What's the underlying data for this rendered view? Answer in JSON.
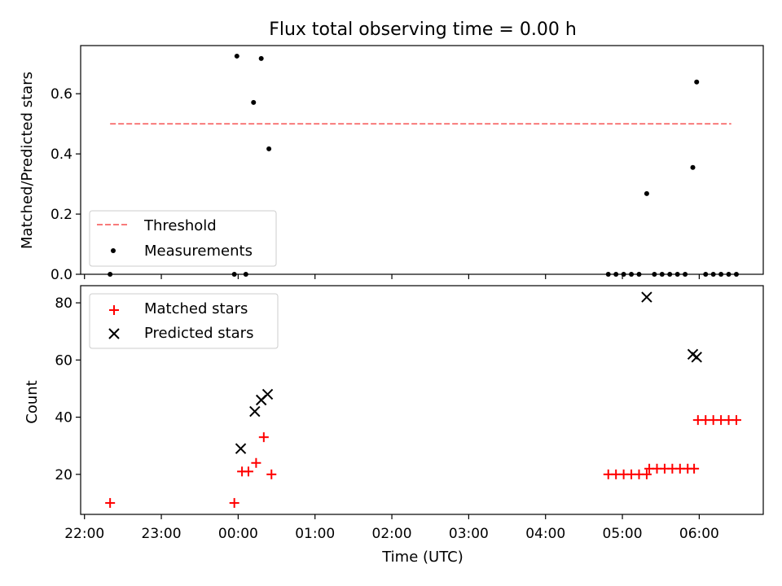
{
  "figure": {
    "title": "Flux total observing time = 0.00 h"
  },
  "chart_data": [
    {
      "type": "scatter",
      "panel": "top",
      "ylabel": "Matched/Predicted stars",
      "xlabel": "",
      "ylim": [
        0,
        0.76
      ],
      "yticks": [
        "0.0",
        "0.2",
        "0.4",
        "0.6"
      ],
      "xlim": [
        "21:57",
        "06:50"
      ],
      "grid": false,
      "legend_position": "lower-left",
      "threshold": {
        "name": "Threshold",
        "value": 0.5,
        "x_range": [
          "22:20",
          "06:25"
        ],
        "color": "#f87a7a",
        "style": "dashed"
      },
      "series": [
        {
          "name": "Measurements",
          "color": "#000000",
          "marker": "dot",
          "points": [
            {
              "x": "22:20",
              "y": 0.0
            },
            {
              "x": "23:57",
              "y": 0.0
            },
            {
              "x": "23:59",
              "y": 0.725
            },
            {
              "x": "00:06",
              "y": 0.0
            },
            {
              "x": "00:12",
              "y": 0.571
            },
            {
              "x": "00:18",
              "y": 0.717
            },
            {
              "x": "00:24",
              "y": 0.417
            },
            {
              "x": "04:49",
              "y": 0.0
            },
            {
              "x": "04:55",
              "y": 0.0
            },
            {
              "x": "05:01",
              "y": 0.0
            },
            {
              "x": "05:07",
              "y": 0.0
            },
            {
              "x": "05:13",
              "y": 0.0
            },
            {
              "x": "05:19",
              "y": 0.268
            },
            {
              "x": "05:25",
              "y": 0.0
            },
            {
              "x": "05:31",
              "y": 0.0
            },
            {
              "x": "05:37",
              "y": 0.0
            },
            {
              "x": "05:43",
              "y": 0.0
            },
            {
              "x": "05:49",
              "y": 0.0
            },
            {
              "x": "05:55",
              "y": 0.355
            },
            {
              "x": "05:58",
              "y": 0.639
            },
            {
              "x": "06:05",
              "y": 0.0
            },
            {
              "x": "06:11",
              "y": 0.0
            },
            {
              "x": "06:17",
              "y": 0.0
            },
            {
              "x": "06:23",
              "y": 0.0
            },
            {
              "x": "06:29",
              "y": 0.0
            }
          ]
        }
      ]
    },
    {
      "type": "scatter",
      "panel": "bottom",
      "ylabel": "Count",
      "xlabel": "Time (UTC)",
      "ylim": [
        6,
        86
      ],
      "yticks": [
        "20",
        "40",
        "60",
        "80"
      ],
      "xlim": [
        "21:57",
        "06:50"
      ],
      "xticks": [
        "22:00",
        "23:00",
        "00:00",
        "01:00",
        "02:00",
        "03:00",
        "04:00",
        "05:00",
        "06:00"
      ],
      "grid": false,
      "legend_position": "upper-left",
      "series": [
        {
          "name": "Matched stars",
          "color": "#ff0000",
          "marker": "plus",
          "points": [
            {
              "x": "22:20",
              "y": 10
            },
            {
              "x": "23:57",
              "y": 10
            },
            {
              "x": "00:03",
              "y": 21
            },
            {
              "x": "00:08",
              "y": 21
            },
            {
              "x": "00:14",
              "y": 24
            },
            {
              "x": "00:20",
              "y": 33
            },
            {
              "x": "00:26",
              "y": 20
            },
            {
              "x": "04:49",
              "y": 20
            },
            {
              "x": "04:55",
              "y": 20
            },
            {
              "x": "05:01",
              "y": 20
            },
            {
              "x": "05:07",
              "y": 20
            },
            {
              "x": "05:13",
              "y": 20
            },
            {
              "x": "05:19",
              "y": 20
            },
            {
              "x": "05:21",
              "y": 22
            },
            {
              "x": "05:27",
              "y": 22
            },
            {
              "x": "05:33",
              "y": 22
            },
            {
              "x": "05:39",
              "y": 22
            },
            {
              "x": "05:45",
              "y": 22
            },
            {
              "x": "05:51",
              "y": 22
            },
            {
              "x": "05:56",
              "y": 22
            },
            {
              "x": "05:59",
              "y": 39
            },
            {
              "x": "06:05",
              "y": 39
            },
            {
              "x": "06:11",
              "y": 39
            },
            {
              "x": "06:17",
              "y": 39
            },
            {
              "x": "06:23",
              "y": 39
            },
            {
              "x": "06:29",
              "y": 39
            }
          ]
        },
        {
          "name": "Predicted stars",
          "color": "#000000",
          "marker": "x",
          "points": [
            {
              "x": "00:02",
              "y": 29
            },
            {
              "x": "00:13",
              "y": 42
            },
            {
              "x": "00:18",
              "y": 46
            },
            {
              "x": "00:23",
              "y": 48
            },
            {
              "x": "05:19",
              "y": 82
            },
            {
              "x": "05:55",
              "y": 62
            },
            {
              "x": "05:58",
              "y": 61
            }
          ]
        }
      ]
    }
  ]
}
